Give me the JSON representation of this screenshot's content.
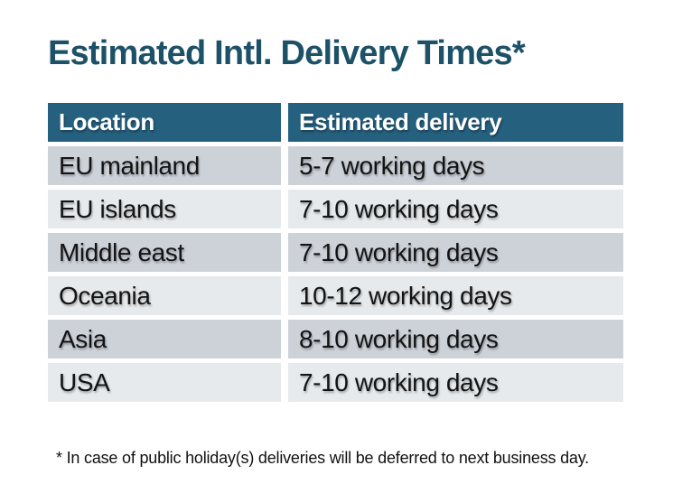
{
  "title": "Estimated Intl. Delivery Times*",
  "table": {
    "headers": [
      "Location",
      "Estimated delivery"
    ],
    "rows": [
      [
        "EU mainland",
        "5-7 working days"
      ],
      [
        "EU islands",
        "7-10 working days"
      ],
      [
        "Middle east",
        "7-10 working days"
      ],
      [
        "Oceania",
        "10-12 working days"
      ],
      [
        "Asia",
        "8-10 working days"
      ],
      [
        "USA",
        "7-10 working days"
      ]
    ]
  },
  "footnote": "* In case of public holiday(s) deliveries will be deferred to next business day.",
  "colors": {
    "title_text": "#1D5168",
    "header_background": "#25607F",
    "header_text": "#FFFFFF",
    "row_dark": "#CDD2D9",
    "row_light": "#E6EAED",
    "cell_text": "#131313",
    "page_background": "#FFFFFF"
  }
}
